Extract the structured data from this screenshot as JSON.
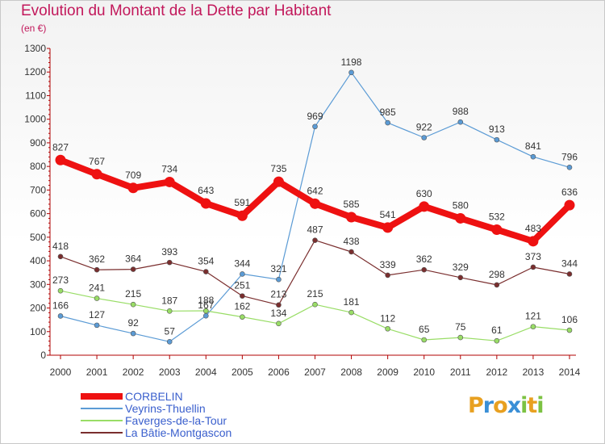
{
  "title": "Evolution du Montant de la Dette par Habitant",
  "unit_label": "(en €)",
  "logo_text": "Proxiti",
  "chart_data": {
    "type": "line",
    "x": [
      "2000",
      "2001",
      "2002",
      "2003",
      "2004",
      "2005",
      "2006",
      "2007",
      "2008",
      "2009",
      "2010",
      "2011",
      "2012",
      "2013",
      "2014"
    ],
    "ylim": [
      0,
      1300
    ],
    "yticks": [
      0,
      100,
      200,
      300,
      400,
      500,
      600,
      700,
      800,
      900,
      1000,
      1100,
      1200,
      1300
    ],
    "grid": false,
    "legend_position": "bottom-left",
    "series": [
      {
        "name": "CORBELIN",
        "color": "#ee1111",
        "emphasis": true,
        "values": [
          827,
          767,
          709,
          734,
          643,
          591,
          735,
          642,
          585,
          541,
          630,
          580,
          532,
          483,
          636
        ]
      },
      {
        "name": "Veyrins-Thuellin",
        "color": "#5b9bd5",
        "emphasis": false,
        "values": [
          166,
          127,
          92,
          57,
          167,
          344,
          321,
          969,
          1198,
          985,
          922,
          988,
          913,
          841,
          796
        ]
      },
      {
        "name": "Faverges-de-la-Tour",
        "color": "#99dd66",
        "emphasis": false,
        "values": [
          273,
          241,
          215,
          187,
          188,
          162,
          134,
          215,
          181,
          112,
          65,
          75,
          61,
          121,
          106
        ]
      },
      {
        "name": "La Bâtie-Montgascon",
        "color": "#7a2e2e",
        "emphasis": false,
        "values": [
          418,
          362,
          364,
          393,
          354,
          251,
          213,
          487,
          438,
          339,
          362,
          329,
          298,
          373,
          344
        ]
      }
    ]
  }
}
